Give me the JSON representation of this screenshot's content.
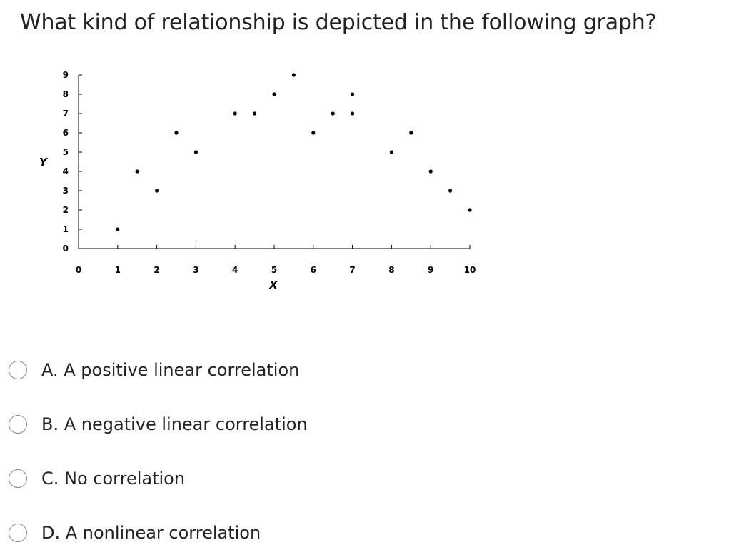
{
  "question": {
    "text": "What kind of relationship is depicted in the following graph?"
  },
  "chart_data": {
    "type": "scatter",
    "xlabel": "X",
    "ylabel": "Y",
    "xlim": [
      0,
      10
    ],
    "ylim": [
      0,
      9
    ],
    "x_ticks": [
      "0",
      "1",
      "2",
      "3",
      "4",
      "5",
      "6",
      "7",
      "8",
      "9",
      "10"
    ],
    "y_ticks": [
      "0",
      "1",
      "2",
      "3",
      "4",
      "5",
      "6",
      "7",
      "8",
      "9"
    ],
    "grid": false,
    "points": [
      {
        "x": 1,
        "y": 1
      },
      {
        "x": 1.5,
        "y": 4
      },
      {
        "x": 2,
        "y": 3
      },
      {
        "x": 2.5,
        "y": 6
      },
      {
        "x": 3,
        "y": 5
      },
      {
        "x": 4,
        "y": 7
      },
      {
        "x": 4.5,
        "y": 7
      },
      {
        "x": 5,
        "y": 8
      },
      {
        "x": 5.5,
        "y": 9
      },
      {
        "x": 6,
        "y": 6
      },
      {
        "x": 6.5,
        "y": 7
      },
      {
        "x": 7,
        "y": 7
      },
      {
        "x": 7,
        "y": 8
      },
      {
        "x": 8,
        "y": 5
      },
      {
        "x": 8.5,
        "y": 6
      },
      {
        "x": 9,
        "y": 4
      },
      {
        "x": 9.5,
        "y": 3
      },
      {
        "x": 10,
        "y": 2
      }
    ]
  },
  "options": [
    {
      "label": "A. A positive linear correlation"
    },
    {
      "label": "B. A negative linear correlation"
    },
    {
      "label": "C. No correlation"
    },
    {
      "label": "D. A nonlinear correlation"
    }
  ]
}
